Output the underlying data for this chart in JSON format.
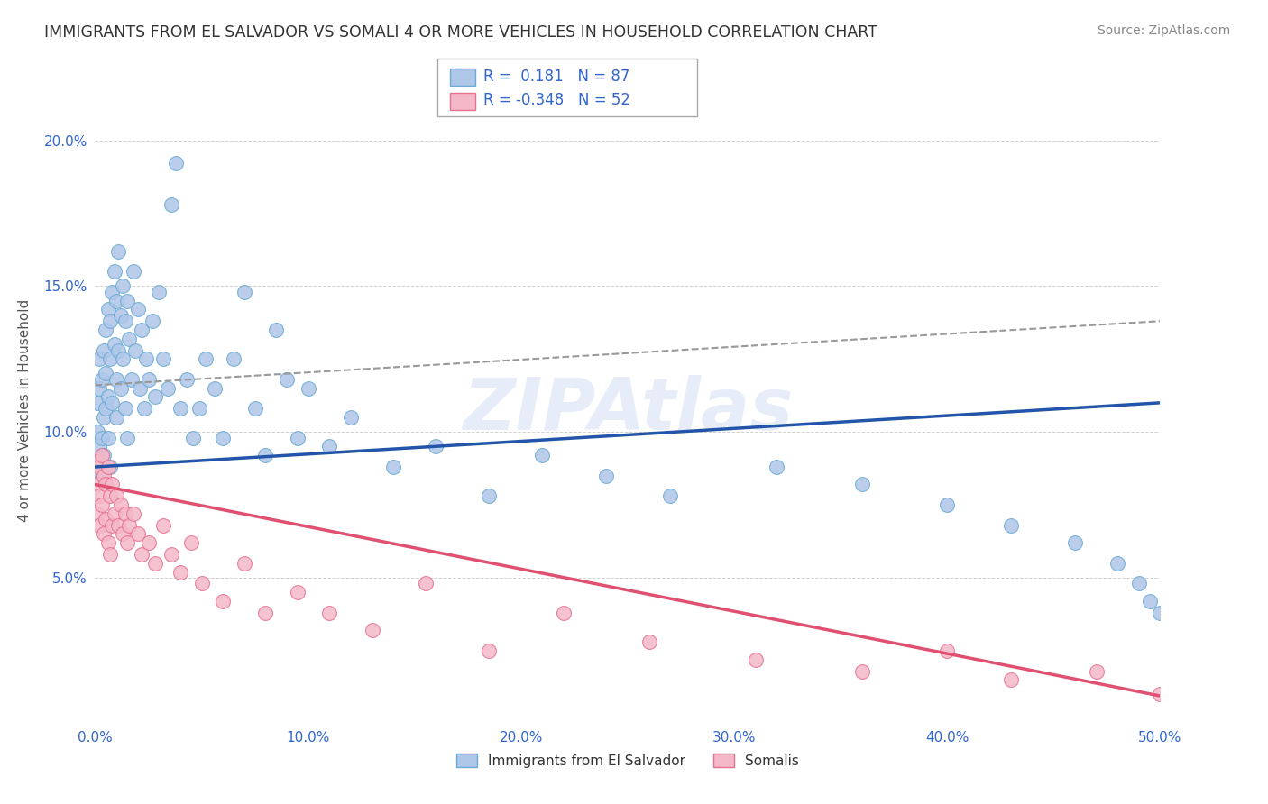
{
  "title": "IMMIGRANTS FROM EL SALVADOR VS SOMALI 4 OR MORE VEHICLES IN HOUSEHOLD CORRELATION CHART",
  "source": "Source: ZipAtlas.com",
  "ylabel": "4 or more Vehicles in Household",
  "watermark": "ZIPAtlas",
  "el_salvador": {
    "R": 0.181,
    "N": 87,
    "color": "#aec6e8",
    "edge_color": "#6aaad4",
    "line_color": "#2255aa",
    "label": "Immigrants from El Salvador",
    "x": [
      0.001,
      0.001,
      0.001,
      0.002,
      0.002,
      0.002,
      0.003,
      0.003,
      0.003,
      0.004,
      0.004,
      0.004,
      0.005,
      0.005,
      0.005,
      0.006,
      0.006,
      0.006,
      0.007,
      0.007,
      0.007,
      0.008,
      0.008,
      0.009,
      0.009,
      0.01,
      0.01,
      0.01,
      0.011,
      0.011,
      0.012,
      0.012,
      0.013,
      0.013,
      0.014,
      0.014,
      0.015,
      0.015,
      0.016,
      0.017,
      0.018,
      0.019,
      0.02,
      0.021,
      0.022,
      0.023,
      0.024,
      0.025,
      0.027,
      0.028,
      0.03,
      0.032,
      0.034,
      0.036,
      0.038,
      0.04,
      0.043,
      0.046,
      0.049,
      0.052,
      0.056,
      0.06,
      0.065,
      0.07,
      0.075,
      0.08,
      0.085,
      0.09,
      0.095,
      0.1,
      0.11,
      0.12,
      0.14,
      0.16,
      0.185,
      0.21,
      0.24,
      0.27,
      0.32,
      0.36,
      0.4,
      0.43,
      0.46,
      0.48,
      0.49,
      0.495,
      0.5
    ],
    "y": [
      0.09,
      0.1,
      0.11,
      0.095,
      0.115,
      0.125,
      0.085,
      0.098,
      0.118,
      0.105,
      0.128,
      0.092,
      0.135,
      0.108,
      0.12,
      0.098,
      0.112,
      0.142,
      0.088,
      0.125,
      0.138,
      0.148,
      0.11,
      0.13,
      0.155,
      0.105,
      0.145,
      0.118,
      0.128,
      0.162,
      0.14,
      0.115,
      0.15,
      0.125,
      0.138,
      0.108,
      0.145,
      0.098,
      0.132,
      0.118,
      0.155,
      0.128,
      0.142,
      0.115,
      0.135,
      0.108,
      0.125,
      0.118,
      0.138,
      0.112,
      0.148,
      0.125,
      0.115,
      0.178,
      0.192,
      0.108,
      0.118,
      0.098,
      0.108,
      0.125,
      0.115,
      0.098,
      0.125,
      0.148,
      0.108,
      0.092,
      0.135,
      0.118,
      0.098,
      0.115,
      0.095,
      0.105,
      0.088,
      0.095,
      0.078,
      0.092,
      0.085,
      0.078,
      0.088,
      0.082,
      0.075,
      0.068,
      0.062,
      0.055,
      0.048,
      0.042,
      0.038
    ]
  },
  "somali": {
    "R": -0.348,
    "N": 52,
    "color": "#f4b8c8",
    "edge_color": "#e87090",
    "line_color": "#e05070",
    "label": "Somalis",
    "x": [
      0.001,
      0.001,
      0.001,
      0.002,
      0.002,
      0.002,
      0.003,
      0.003,
      0.004,
      0.004,
      0.005,
      0.005,
      0.006,
      0.006,
      0.007,
      0.007,
      0.008,
      0.008,
      0.009,
      0.01,
      0.011,
      0.012,
      0.013,
      0.014,
      0.015,
      0.016,
      0.018,
      0.02,
      0.022,
      0.025,
      0.028,
      0.032,
      0.036,
      0.04,
      0.045,
      0.05,
      0.06,
      0.07,
      0.08,
      0.095,
      0.11,
      0.13,
      0.155,
      0.185,
      0.22,
      0.26,
      0.31,
      0.36,
      0.4,
      0.43,
      0.47,
      0.5
    ],
    "y": [
      0.09,
      0.082,
      0.072,
      0.088,
      0.078,
      0.068,
      0.092,
      0.075,
      0.085,
      0.065,
      0.082,
      0.07,
      0.088,
      0.062,
      0.078,
      0.058,
      0.082,
      0.068,
      0.072,
      0.078,
      0.068,
      0.075,
      0.065,
      0.072,
      0.062,
      0.068,
      0.072,
      0.065,
      0.058,
      0.062,
      0.055,
      0.068,
      0.058,
      0.052,
      0.062,
      0.048,
      0.042,
      0.055,
      0.038,
      0.045,
      0.038,
      0.032,
      0.048,
      0.025,
      0.038,
      0.028,
      0.022,
      0.018,
      0.025,
      0.015,
      0.018,
      0.01
    ]
  },
  "xlim": [
    0.0,
    0.5
  ],
  "ylim": [
    0.0,
    0.215
  ],
  "yticks": [
    0.05,
    0.1,
    0.15,
    0.2
  ],
  "ytick_labels": [
    "5.0%",
    "10.0%",
    "15.0%",
    "20.0%"
  ],
  "xticks": [
    0.0,
    0.1,
    0.2,
    0.3,
    0.4,
    0.5
  ],
  "xtick_labels": [
    "0.0%",
    "10.0%",
    "20.0%",
    "30.0%",
    "40.0%",
    "50.0%"
  ],
  "grid_color": "#cccccc",
  "background_color": "#ffffff",
  "title_color": "#333333",
  "tick_color": "#3366cc",
  "source_color": "#888888",
  "es_line_b": 0.088,
  "es_line_m": 0.044,
  "dash_line_b": 0.116,
  "dash_line_m": 0.044,
  "so_line_b": 0.082,
  "so_line_m": -0.145
}
